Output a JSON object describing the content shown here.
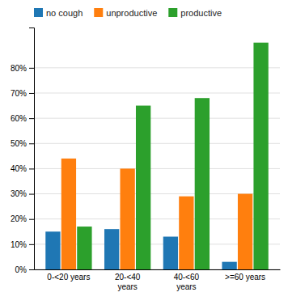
{
  "chart_data": {
    "type": "bar",
    "categories": [
      "0-<20 years",
      "20-<40\nyears",
      "40-<60\nyears",
      ">=60 years"
    ],
    "series": [
      {
        "name": "no cough",
        "values": [
          15,
          16,
          13,
          3
        ]
      },
      {
        "name": "unproductive",
        "values": [
          44,
          40,
          29,
          30
        ]
      },
      {
        "name": "productive",
        "values": [
          17,
          65,
          68,
          90
        ]
      }
    ],
    "ylim": [
      0,
      96
    ],
    "yticks": [
      {
        "value": 0,
        "label": "0%"
      },
      {
        "value": 10,
        "label": "10%"
      },
      {
        "value": 20,
        "label": "20%"
      },
      {
        "value": 30,
        "label": "30%"
      },
      {
        "value": 40,
        "label": "40%"
      },
      {
        "value": 50,
        "label": "50%"
      },
      {
        "value": 60,
        "label": "60%"
      },
      {
        "value": 70,
        "label": "70%"
      },
      {
        "value": 80,
        "label": "80%"
      }
    ],
    "grid": true,
    "legend": "top"
  }
}
